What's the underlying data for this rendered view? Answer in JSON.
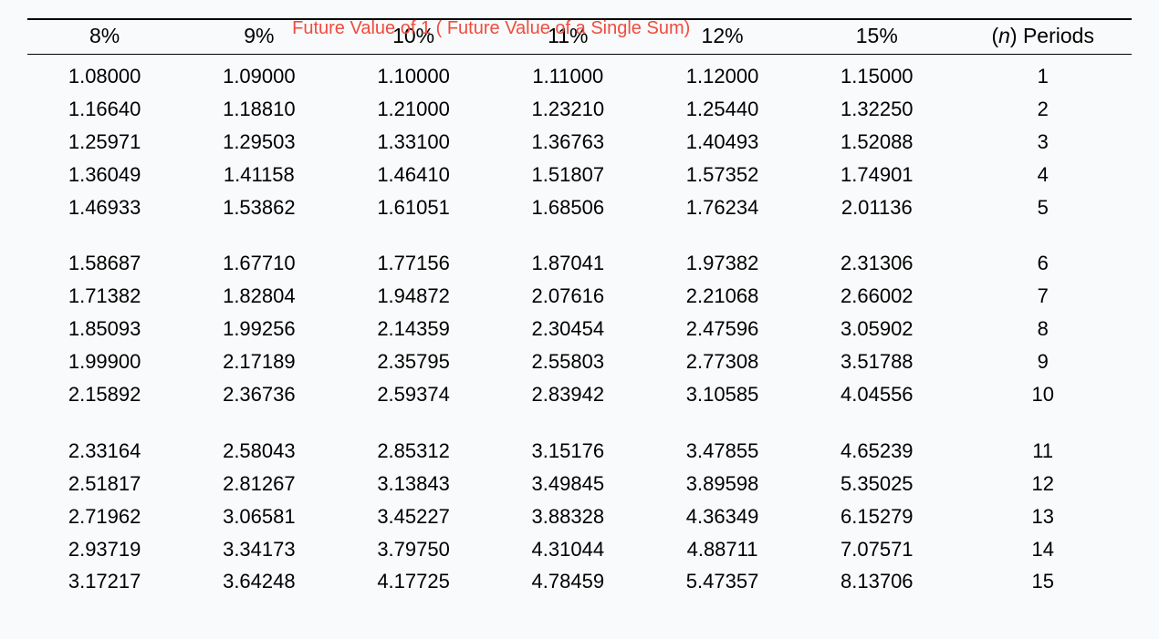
{
  "type": "table",
  "title": "Future Value of 1 ( Future Value of a Single Sum)",
  "title_color": "#ef4c3e",
  "title_fontsize": 20,
  "background_color": "#f9fafb",
  "text_color": "#000000",
  "header_fontsize": 23,
  "cell_fontsize": 22,
  "border_color": "#000000",
  "border_top_width": 2,
  "border_header_width": 1.5,
  "columns": [
    "8%",
    "9%",
    "10%",
    "11%",
    "12%",
    "15%",
    "(n) Periods"
  ],
  "periods_label_prefix": "(",
  "periods_label_n": "n",
  "periods_label_suffix": ") Periods",
  "groups": [
    {
      "rows": [
        {
          "v": [
            "1.08000",
            "1.09000",
            "1.10000",
            "1.11000",
            "1.12000",
            "1.15000"
          ],
          "period": "1"
        },
        {
          "v": [
            "1.16640",
            "1.18810",
            "1.21000",
            "1.23210",
            "1.25440",
            "1.32250"
          ],
          "period": "2"
        },
        {
          "v": [
            "1.25971",
            "1.29503",
            "1.33100",
            "1.36763",
            "1.40493",
            "1.52088"
          ],
          "period": "3"
        },
        {
          "v": [
            "1.36049",
            "1.41158",
            "1.46410",
            "1.51807",
            "1.57352",
            "1.74901"
          ],
          "period": "4"
        },
        {
          "v": [
            "1.46933",
            "1.53862",
            "1.61051",
            "1.68506",
            "1.76234",
            "2.01136"
          ],
          "period": "5"
        }
      ]
    },
    {
      "rows": [
        {
          "v": [
            "1.58687",
            "1.67710",
            "1.77156",
            "1.87041",
            "1.97382",
            "2.31306"
          ],
          "period": "6"
        },
        {
          "v": [
            "1.71382",
            "1.82804",
            "1.94872",
            "2.07616",
            "2.21068",
            "2.66002"
          ],
          "period": "7"
        },
        {
          "v": [
            "1.85093",
            "1.99256",
            "2.14359",
            "2.30454",
            "2.47596",
            "3.05902"
          ],
          "period": "8"
        },
        {
          "v": [
            "1.99900",
            "2.17189",
            "2.35795",
            "2.55803",
            "2.77308",
            "3.51788"
          ],
          "period": "9"
        },
        {
          "v": [
            "2.15892",
            "2.36736",
            "2.59374",
            "2.83942",
            "3.10585",
            "4.04556"
          ],
          "period": "10"
        }
      ]
    },
    {
      "rows": [
        {
          "v": [
            "2.33164",
            "2.58043",
            "2.85312",
            "3.15176",
            "3.47855",
            "4.65239"
          ],
          "period": "11"
        },
        {
          "v": [
            "2.51817",
            "2.81267",
            "3.13843",
            "3.49845",
            "3.89598",
            "5.35025"
          ],
          "period": "12"
        },
        {
          "v": [
            "2.71962",
            "3.06581",
            "3.45227",
            "3.88328",
            "4.36349",
            "6.15279"
          ],
          "period": "13"
        },
        {
          "v": [
            "2.93719",
            "3.34173",
            "3.79750",
            "4.31044",
            "4.88711",
            "7.07571"
          ],
          "period": "14"
        },
        {
          "v": [
            "3.17217",
            "3.64248",
            "4.17725",
            "4.78459",
            "5.47357",
            "8.13706"
          ],
          "period": "15"
        }
      ]
    }
  ]
}
